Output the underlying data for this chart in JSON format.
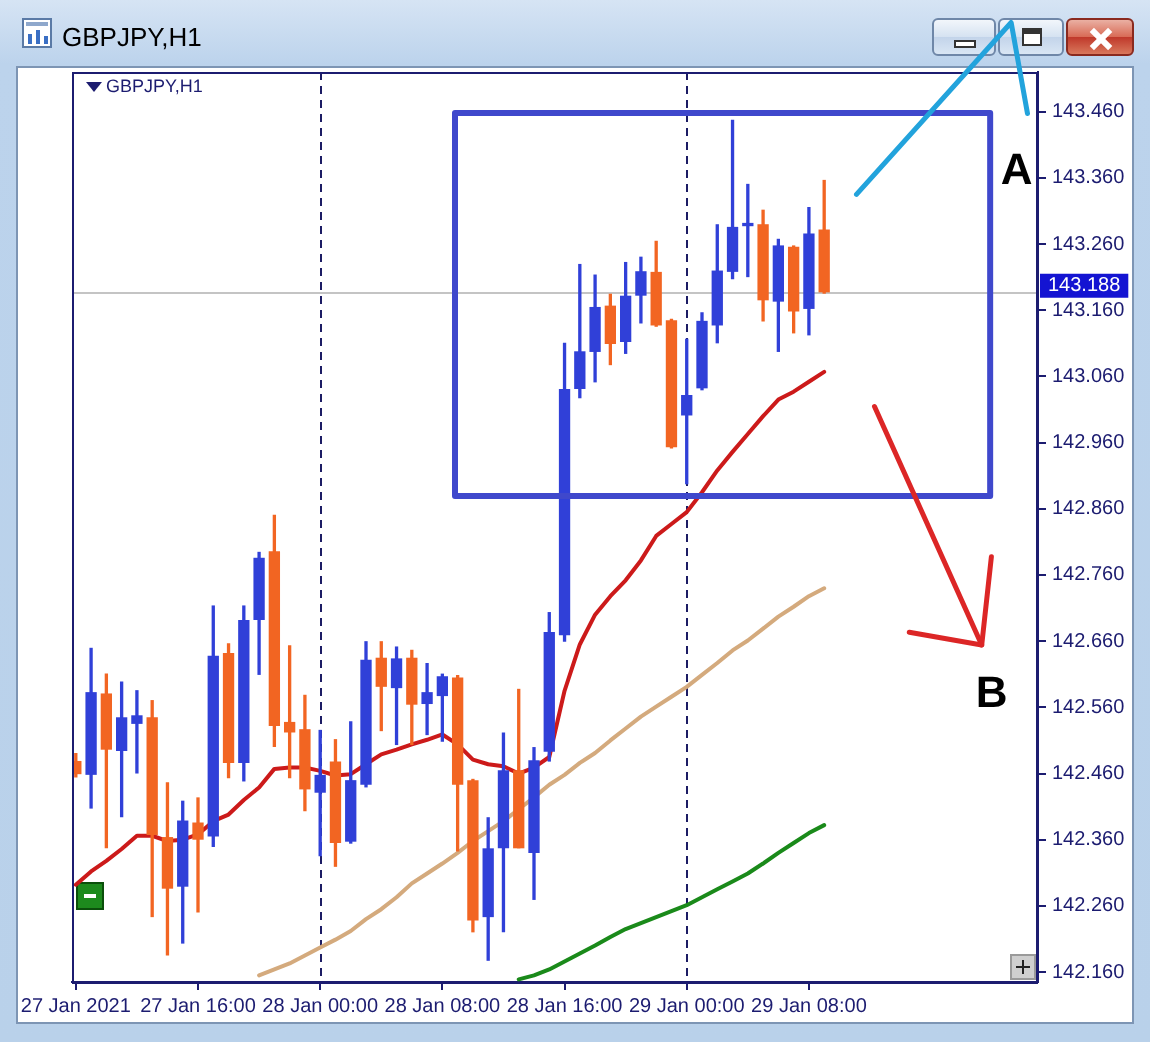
{
  "chart_data": {
    "type": "candlestick",
    "title": "GBPJPY,H1",
    "subtitle": "GBPJPY,H1",
    "annotations": [
      "A",
      "B"
    ],
    "x": [
      "2021-01-27T08:00",
      "2021-01-27T09:00",
      "2021-01-27T10:00",
      "2021-01-27T11:00",
      "2021-01-27T12:00",
      "2021-01-27T13:00",
      "2021-01-27T14:00",
      "2021-01-27T15:00",
      "2021-01-27T16:00",
      "2021-01-27T17:00",
      "2021-01-27T18:00",
      "2021-01-27T19:00",
      "2021-01-27T20:00",
      "2021-01-27T21:00",
      "2021-01-27T22:00",
      "2021-01-27T23:00",
      "2021-01-28T00:00",
      "2021-01-28T01:00",
      "2021-01-28T02:00",
      "2021-01-28T03:00",
      "2021-01-28T04:00",
      "2021-01-28T05:00",
      "2021-01-28T06:00",
      "2021-01-28T07:00",
      "2021-01-28T08:00",
      "2021-01-28T09:00",
      "2021-01-28T10:00",
      "2021-01-28T11:00",
      "2021-01-28T12:00",
      "2021-01-28T13:00",
      "2021-01-28T14:00",
      "2021-01-28T15:00",
      "2021-01-28T16:00",
      "2021-01-28T17:00",
      "2021-01-28T18:00",
      "2021-01-28T19:00",
      "2021-01-28T20:00",
      "2021-01-28T21:00",
      "2021-01-28T22:00",
      "2021-01-28T23:00",
      "2021-01-29T00:00",
      "2021-01-29T01:00",
      "2021-01-29T02:00",
      "2021-01-29T03:00",
      "2021-01-29T04:00",
      "2021-01-29T05:00",
      "2021-01-29T06:00",
      "2021-01-29T07:00",
      "2021-01-29T08:00",
      "2021-01-29T09:00"
    ],
    "xlim": [
      "2021-01-27T07:45",
      "2021-01-29T23:00"
    ],
    "xticks": [
      {
        "value": "2021-01-27T08:00",
        "label": "27 Jan 2021"
      },
      {
        "value": "2021-01-27T16:00",
        "label": "27 Jan 16:00"
      },
      {
        "value": "2021-01-28T00:00",
        "label": "28 Jan 00:00"
      },
      {
        "value": "2021-01-28T08:00",
        "label": "28 Jan 08:00"
      },
      {
        "value": "2021-01-28T16:00",
        "label": "28 Jan 16:00"
      },
      {
        "value": "2021-01-29T00:00",
        "label": "29 Jan 00:00"
      },
      {
        "value": "2021-01-29T08:00",
        "label": "29 Jan 08:00"
      }
    ],
    "ylim": [
      142.145,
      143.52
    ],
    "yticks": [
      {
        "value": 142.16,
        "label": "142.160"
      },
      {
        "value": 142.26,
        "label": "142.260"
      },
      {
        "value": 142.36,
        "label": "142.360"
      },
      {
        "value": 142.46,
        "label": "142.460"
      },
      {
        "value": 142.56,
        "label": "142.560"
      },
      {
        "value": 142.66,
        "label": "142.660"
      },
      {
        "value": 142.76,
        "label": "142.760"
      },
      {
        "value": 142.86,
        "label": "142.860"
      },
      {
        "value": 142.96,
        "label": "142.960"
      },
      {
        "value": 143.06,
        "label": "143.060"
      },
      {
        "value": 143.16,
        "label": "143.160"
      },
      {
        "value": 143.26,
        "label": "143.260"
      },
      {
        "value": 143.36,
        "label": "143.360"
      },
      {
        "value": 143.46,
        "label": "143.460"
      }
    ],
    "series": [
      {
        "ohlc": [
          [
            142.478,
            142.49,
            142.455,
            142.46
          ],
          [
            142.459,
            142.649,
            142.408,
            142.582
          ],
          [
            142.58,
            142.61,
            142.348,
            142.497
          ],
          [
            142.495,
            142.598,
            142.395,
            142.544
          ],
          [
            142.536,
            142.585,
            142.461,
            142.547
          ],
          [
            142.544,
            142.57,
            142.244,
            142.368
          ],
          [
            142.363,
            142.446,
            142.186,
            142.287
          ],
          [
            142.29,
            142.418,
            142.204,
            142.388
          ],
          [
            142.385,
            142.423,
            142.251,
            142.361
          ],
          [
            142.366,
            142.713,
            142.35,
            142.637
          ],
          [
            142.641,
            142.656,
            142.454,
            142.477
          ],
          [
            142.477,
            142.713,
            142.449,
            142.691
          ],
          [
            142.693,
            142.794,
            142.61,
            142.785
          ],
          [
            142.795,
            142.85,
            142.501,
            142.533
          ],
          [
            142.537,
            142.653,
            142.454,
            142.523
          ],
          [
            142.526,
            142.578,
            142.404,
            142.437
          ],
          [
            142.432,
            142.525,
            142.336,
            142.457
          ],
          [
            142.477,
            142.511,
            142.32,
            142.356
          ],
          [
            142.358,
            142.538,
            142.355,
            142.449
          ],
          [
            142.444,
            142.659,
            142.44,
            142.631
          ],
          [
            142.634,
            142.659,
            142.525,
            142.592
          ],
          [
            142.59,
            142.651,
            142.504,
            142.633
          ],
          [
            142.634,
            142.646,
            142.504,
            142.565
          ],
          [
            142.566,
            142.626,
            142.519,
            142.582
          ],
          [
            142.578,
            142.61,
            142.509,
            142.606
          ],
          [
            142.604,
            142.608,
            142.343,
            142.444
          ],
          [
            142.449,
            142.451,
            142.221,
            142.239
          ],
          [
            142.244,
            142.393,
            142.178,
            142.346
          ],
          [
            142.348,
            142.521,
            142.221,
            142.464
          ],
          [
            142.464,
            142.587,
            142.348,
            142.348
          ],
          [
            142.341,
            142.499,
            142.27,
            142.479
          ],
          [
            142.494,
            142.703,
            142.479,
            142.673
          ],
          [
            142.67,
            143.11,
            142.66,
            143.04
          ],
          [
            143.042,
            143.229,
            143.028,
            143.097
          ],
          [
            143.098,
            143.213,
            143.052,
            143.164
          ],
          [
            143.166,
            143.184,
            143.078,
            143.11
          ],
          [
            143.113,
            143.232,
            143.095,
            143.181
          ],
          [
            143.183,
            143.24,
            143.141,
            143.218
          ],
          [
            143.217,
            143.264,
            143.136,
            143.138
          ],
          [
            143.144,
            143.146,
            142.952,
            142.954
          ],
          [
            143.002,
            143.116,
            142.898,
            143.031
          ],
          [
            143.043,
            143.156,
            143.04,
            143.143
          ],
          [
            143.138,
            143.289,
            143.111,
            143.219
          ],
          [
            143.219,
            143.447,
            143.208,
            143.285
          ],
          [
            143.288,
            143.35,
            143.211,
            143.29
          ],
          [
            143.289,
            143.311,
            143.144,
            143.176
          ],
          [
            143.174,
            143.267,
            143.098,
            143.257
          ],
          [
            143.255,
            143.257,
            143.126,
            143.159
          ],
          [
            143.163,
            143.315,
            143.123,
            143.275
          ],
          [
            143.281,
            143.356,
            143.186,
            143.188
          ]
        ],
        "colors": [
          "#f26522",
          "#3040d8",
          "#f26522",
          "#3040d8",
          "#3040d8",
          "#f26522",
          "#f26522",
          "#3040d8",
          "#f26522",
          "#3040d8",
          "#f26522",
          "#3040d8",
          "#3040d8",
          "#f26522",
          "#f26522",
          "#f26522",
          "#3040d8",
          "#f26522",
          "#3040d8",
          "#3040d8",
          "#f26522",
          "#3040d8",
          "#f26522",
          "#3040d8",
          "#3040d8",
          "#f26522",
          "#f26522",
          "#3040d8",
          "#3040d8",
          "#f26522",
          "#3040d8",
          "#3040d8",
          "#3040d8",
          "#3040d8",
          "#3040d8",
          "#f26522",
          "#3040d8",
          "#3040d8",
          "#f26522",
          "#f26522",
          "#3040d8",
          "#3040d8",
          "#3040d8",
          "#3040d8",
          "#3040d8",
          "#f26522",
          "#3040d8",
          "#f26522",
          "#3040d8",
          "#f26522"
        ]
      },
      {
        "type": "line",
        "color": "#cc1a1a",
        "values": [
          142.292,
          142.312,
          142.328,
          142.346,
          142.366,
          142.366,
          142.358,
          142.36,
          142.368,
          142.388,
          142.398,
          142.42,
          142.439,
          142.467,
          142.469,
          142.469,
          142.464,
          142.457,
          142.459,
          142.474,
          142.489,
          142.496,
          142.504,
          142.511,
          142.519,
          142.504,
          142.481,
          142.474,
          142.471,
          142.46,
          142.469,
          142.485,
          142.585,
          142.655,
          142.7,
          142.728,
          142.752,
          142.782,
          142.819,
          142.837,
          142.855,
          142.885,
          142.918,
          142.946,
          142.973,
          143.0,
          143.025,
          143.037,
          143.052,
          143.067
        ]
      },
      {
        "type": "line",
        "color": "#d4aa7d",
        "values": [
          null,
          null,
          null,
          null,
          null,
          null,
          null,
          null,
          null,
          null,
          null,
          null,
          142.155,
          142.164,
          142.173,
          142.185,
          142.197,
          142.209,
          142.222,
          142.24,
          142.255,
          142.273,
          142.294,
          142.309,
          142.324,
          142.34,
          142.358,
          142.373,
          142.388,
          142.406,
          142.424,
          142.443,
          142.458,
          142.476,
          142.491,
          142.51,
          142.528,
          142.546,
          142.561,
          142.576,
          142.591,
          142.609,
          142.627,
          142.646,
          142.661,
          142.679,
          142.697,
          142.712,
          142.728,
          142.74
        ]
      },
      {
        "type": "line",
        "color": "#1a8a1a",
        "values": [
          null,
          null,
          null,
          null,
          null,
          null,
          null,
          null,
          null,
          null,
          null,
          null,
          null,
          null,
          null,
          null,
          null,
          null,
          null,
          null,
          null,
          null,
          null,
          null,
          null,
          null,
          null,
          null,
          null,
          142.149,
          142.155,
          142.164,
          142.176,
          142.188,
          142.2,
          142.213,
          142.225,
          142.234,
          142.243,
          142.252,
          142.261,
          142.273,
          142.285,
          142.297,
          142.309,
          142.324,
          142.34,
          142.355,
          142.37,
          142.382
        ]
      }
    ],
    "ref_lines": [
      {
        "axis": "x",
        "value": "2021-01-28T00:00",
        "color": "#1c1c64",
        "line_style": "dashed"
      },
      {
        "axis": "x",
        "value": "2021-01-29T00:00",
        "color": "#1c1c64",
        "line_style": "dashed"
      },
      {
        "axis": "y",
        "value": 143.188,
        "label": "143.188",
        "color": "#c4c4c4"
      }
    ]
  }
}
